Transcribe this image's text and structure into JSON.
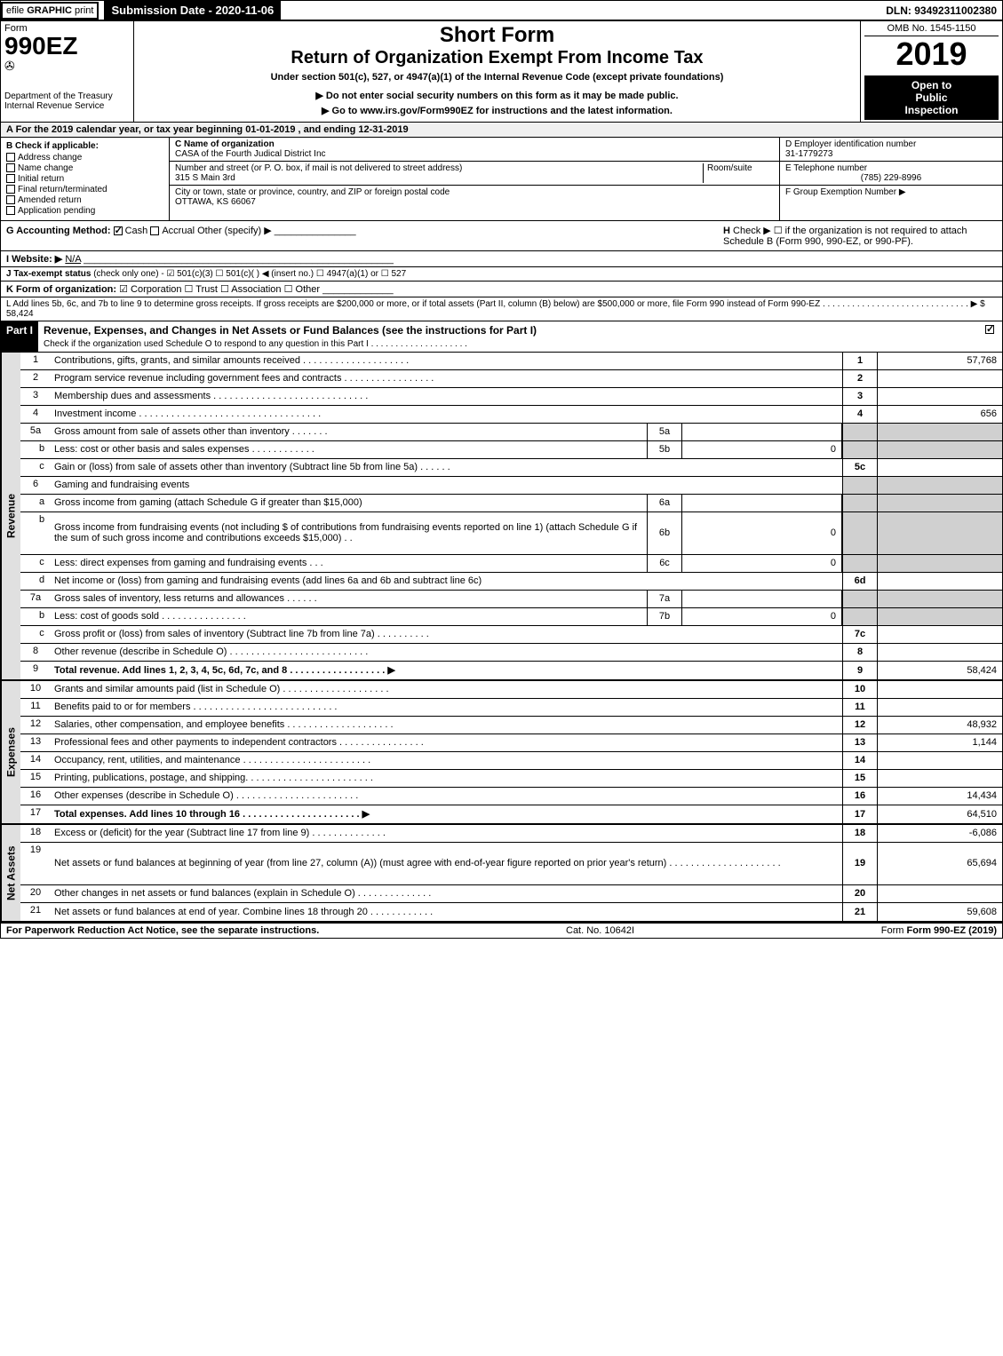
{
  "topbar": {
    "efile_prefix": "efile",
    "efile_graphic": "GRAPHIC",
    "efile_print": "print",
    "submission_label": "Submission Date - 2020-11-06",
    "dln": "DLN: 93492311002380"
  },
  "header": {
    "form_label": "Form",
    "form_number": "990EZ",
    "dept_line1": "Department of the Treasury",
    "dept_line2": "Internal Revenue Service",
    "short_form": "Short Form",
    "return_title": "Return of Organization Exempt From Income Tax",
    "under_section": "Under section 501(c), 527, or 4947(a)(1) of the Internal Revenue Code (except private foundations)",
    "do_not_enter": "▶ Do not enter social security numbers on this form as it may be made public.",
    "go_to": "▶ Go to www.irs.gov/Form990EZ for instructions and the latest information.",
    "omb": "OMB No. 1545-1150",
    "tax_year": "2019",
    "inspection_line1": "Open to",
    "inspection_line2": "Public",
    "inspection_line3": "Inspection"
  },
  "period": "A For the 2019 calendar year, or tax year beginning 01-01-2019 , and ending 12-31-2019",
  "section_b": {
    "check_label": "B Check if applicable:",
    "items": [
      "Address change",
      "Name change",
      "Initial return",
      "Final return/terminated",
      "Amended return",
      "Application pending"
    ]
  },
  "section_c": {
    "name_label": "C Name of organization",
    "name_value": "CASA of the Fourth Judical District Inc",
    "street_label": "Number and street (or P. O. box, if mail is not delivered to street address)",
    "room_label": "Room/suite",
    "street_value": "315 S Main 3rd",
    "city_label": "City or town, state or province, country, and ZIP or foreign postal code",
    "city_value": "OTTAWA, KS  66067"
  },
  "section_d": {
    "ein_label": "D Employer identification number",
    "ein_value": "31-1779273",
    "phone_label": "E Telephone number",
    "phone_value": "(785) 229-8996",
    "group_label": "F Group Exemption Number  ▶"
  },
  "section_g": {
    "label": "G Accounting Method:",
    "cash": "Cash",
    "accrual": "Accrual",
    "other": "Other (specify) ▶"
  },
  "section_h": {
    "label": "H",
    "text": "Check ▶ ☐ if the organization is not required to attach Schedule B (Form 990, 990-EZ, or 990-PF)."
  },
  "section_i": {
    "label": "I Website: ▶",
    "value": "N/A"
  },
  "section_j": {
    "label": "J Tax-exempt status",
    "text": "(check only one) - ☑ 501(c)(3) ☐ 501(c)( ) ◀ (insert no.) ☐ 4947(a)(1) or ☐ 527"
  },
  "section_k": {
    "label": "K Form of organization:",
    "text": "☑ Corporation  ☐ Trust  ☐ Association  ☐ Other"
  },
  "section_l": {
    "text": "L Add lines 5b, 6c, and 7b to line 9 to determine gross receipts. If gross receipts are $200,000 or more, or if total assets (Part II, column (B) below) are $500,000 or more, file Form 990 instead of Form 990-EZ . . . . . . . . . . . . . . . . . . . . . . . . . . . . . . ▶ $ 58,424"
  },
  "part1": {
    "header": "Part I",
    "title": "Revenue, Expenses, and Changes in Net Assets or Fund Balances (see the instructions for Part I)",
    "check_text": "Check if the organization used Schedule O to respond to any question in this Part I . . . . . . . . . . . . . . . . . . . .",
    "checked": true
  },
  "side_labels": {
    "revenue": "Revenue",
    "expenses": "Expenses",
    "net_assets": "Net Assets"
  },
  "revenue_lines": [
    {
      "num": "1",
      "desc": "Contributions, gifts, grants, and similar amounts received . . . . . . . . . . . . . . . . . . . .",
      "col": "1",
      "val": "57,768"
    },
    {
      "num": "2",
      "desc": "Program service revenue including government fees and contracts . . . . . . . . . . . . . . . . .",
      "col": "2",
      "val": ""
    },
    {
      "num": "3",
      "desc": "Membership dues and assessments . . . . . . . . . . . . . . . . . . . . . . . . . . . . .",
      "col": "3",
      "val": ""
    },
    {
      "num": "4",
      "desc": "Investment income . . . . . . . . . . . . . . . . . . . . . . . . . . . . . . . . . .",
      "col": "4",
      "val": "656"
    },
    {
      "num": "5a",
      "desc": "Gross amount from sale of assets other than inventory . . . . . . .",
      "sub_col": "5a",
      "sub_val": "",
      "shaded": true
    },
    {
      "num": "b",
      "indent": true,
      "desc": "Less: cost or other basis and sales expenses . . . . . . . . . . . .",
      "sub_col": "5b",
      "sub_val": "0",
      "shaded": true
    },
    {
      "num": "c",
      "indent": true,
      "desc": "Gain or (loss) from sale of assets other than inventory (Subtract line 5b from line 5a) . . . . . .",
      "col": "5c",
      "val": ""
    },
    {
      "num": "6",
      "desc": "Gaming and fundraising events",
      "shaded": true,
      "no_cols": true
    },
    {
      "num": "a",
      "indent": true,
      "desc": "Gross income from gaming (attach Schedule G if greater than $15,000)",
      "sub_col": "6a",
      "sub_val": "",
      "shaded": true
    },
    {
      "num": "b",
      "indent": true,
      "desc": "Gross income from fundraising events (not including $                      of contributions from fundraising events reported on line 1) (attach Schedule G if the sum of such gross income and contributions exceeds $15,000)    . .",
      "sub_col": "6b",
      "sub_val": "0",
      "shaded": true,
      "tall": true
    },
    {
      "num": "c",
      "indent": true,
      "desc": "Less: direct expenses from gaming and fundraising events     . . .",
      "sub_col": "6c",
      "sub_val": "0",
      "shaded": true
    },
    {
      "num": "d",
      "indent": true,
      "desc": "Net income or (loss) from gaming and fundraising events (add lines 6a and 6b and subtract line 6c)",
      "col": "6d",
      "val": ""
    },
    {
      "num": "7a",
      "desc": "Gross sales of inventory, less returns and allowances . . . . . .",
      "sub_col": "7a",
      "sub_val": "",
      "shaded": true
    },
    {
      "num": "b",
      "indent": true,
      "desc": "Less: cost of goods sold      . . . . . . . . . . . . . . . .",
      "sub_col": "7b",
      "sub_val": "0",
      "shaded": true
    },
    {
      "num": "c",
      "indent": true,
      "desc": "Gross profit or (loss) from sales of inventory (Subtract line 7b from line 7a) . . . . . . . . . .",
      "col": "7c",
      "val": ""
    },
    {
      "num": "8",
      "desc": "Other revenue (describe in Schedule O) . . . . . . . . . . . . . . . . . . . . . . . . . .",
      "col": "8",
      "val": ""
    },
    {
      "num": "9",
      "desc": "Total revenue. Add lines 1, 2, 3, 4, 5c, 6d, 7c, and 8  . . . . . . . . . . . . . . . . . . ▶",
      "col": "9",
      "val": "58,424",
      "bold": true
    }
  ],
  "expense_lines": [
    {
      "num": "10",
      "desc": "Grants and similar amounts paid (list in Schedule O) . . . . . . . . . . . . . . . . . . . .",
      "col": "10",
      "val": ""
    },
    {
      "num": "11",
      "desc": "Benefits paid to or for members    . . . . . . . . . . . . . . . . . . . . . . . . . . .",
      "col": "11",
      "val": ""
    },
    {
      "num": "12",
      "desc": "Salaries, other compensation, and employee benefits . . . . . . . . . . . . . . . . . . . .",
      "col": "12",
      "val": "48,932"
    },
    {
      "num": "13",
      "desc": "Professional fees and other payments to independent contractors . . . . . . . . . . . . . . . .",
      "col": "13",
      "val": "1,144"
    },
    {
      "num": "14",
      "desc": "Occupancy, rent, utilities, and maintenance . . . . . . . . . . . . . . . . . . . . . . . .",
      "col": "14",
      "val": ""
    },
    {
      "num": "15",
      "desc": "Printing, publications, postage, and shipping. . . . . . . . . . . . . . . . . . . . . . . .",
      "col": "15",
      "val": ""
    },
    {
      "num": "16",
      "desc": "Other expenses (describe in Schedule O)    . . . . . . . . . . . . . . . . . . . . . . .",
      "col": "16",
      "val": "14,434"
    },
    {
      "num": "17",
      "desc": "Total expenses. Add lines 10 through 16    . . . . . . . . . . . . . . . . . . . . . . ▶",
      "col": "17",
      "val": "64,510",
      "bold": true
    }
  ],
  "netasset_lines": [
    {
      "num": "18",
      "desc": "Excess or (deficit) for the year (Subtract line 17 from line 9)      . . . . . . . . . . . . . .",
      "col": "18",
      "val": "-6,086"
    },
    {
      "num": "19",
      "desc": "Net assets or fund balances at beginning of year (from line 27, column (A)) (must agree with end-of-year figure reported on prior year's return) . . . . . . . . . . . . . . . . . . . . .",
      "col": "19",
      "val": "65,694",
      "tall": true
    },
    {
      "num": "20",
      "desc": "Other changes in net assets or fund balances (explain in Schedule O) . . . . . . . . . . . . . .",
      "col": "20",
      "val": ""
    },
    {
      "num": "21",
      "desc": "Net assets or fund balances at end of year. Combine lines 18 through 20 . . . . . . . . . . . .",
      "col": "21",
      "val": "59,608"
    }
  ],
  "footer": {
    "left": "For Paperwork Reduction Act Notice, see the separate instructions.",
    "center": "Cat. No. 10642I",
    "right": "Form 990-EZ (2019)"
  },
  "colors": {
    "black": "#000000",
    "white": "#ffffff",
    "shaded": "#d0d0d0",
    "light_shade": "#e8e8e8"
  }
}
